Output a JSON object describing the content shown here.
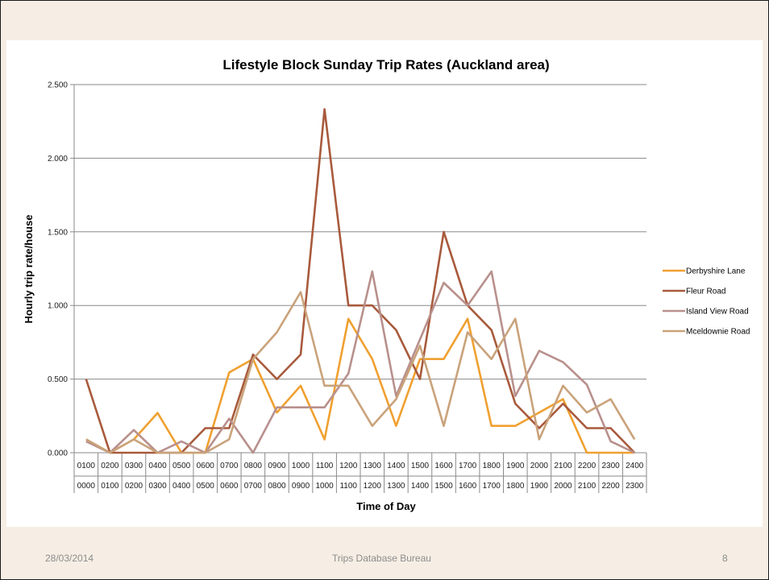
{
  "footer": {
    "date": "28/03/2014",
    "organisation": "Trips Database Bureau",
    "page_number": "8"
  },
  "chart_data": {
    "type": "line",
    "title": "Lifestyle Block Sunday Trip Rates (Auckland area)",
    "xlabel": "Time of Day",
    "ylabel": "Hourly trip rate/house",
    "ylim": [
      0,
      2.5
    ],
    "yticks": [
      "0.000",
      "0.500",
      "1.000",
      "1.500",
      "2.000",
      "2.500"
    ],
    "grid": true,
    "legend_position": "right",
    "categories_end": [
      "0100",
      "0200",
      "0300",
      "0400",
      "0500",
      "0600",
      "0700",
      "0800",
      "0900",
      "1000",
      "1100",
      "1200",
      "1300",
      "1400",
      "1500",
      "1600",
      "1700",
      "1800",
      "1900",
      "2000",
      "2100",
      "2200",
      "2300",
      "2400"
    ],
    "categories_start": [
      "0000",
      "0100",
      "0200",
      "0300",
      "0400",
      "0500",
      "0600",
      "0700",
      "0800",
      "0900",
      "1000",
      "1100",
      "1200",
      "1300",
      "1400",
      "1500",
      "1600",
      "1700",
      "1800",
      "1900",
      "2000",
      "2100",
      "2200",
      "2300"
    ],
    "series": [
      {
        "name": "Derbyshire Lane",
        "color": "#f0a030",
        "values": [
          0.09,
          0,
          0.09,
          0.27,
          0,
          0,
          0.545,
          0.636,
          0.273,
          0.455,
          0.09,
          0.909,
          0.636,
          0.182,
          0.636,
          0.636,
          0.909,
          0.182,
          0.182,
          0.273,
          0.364,
          0,
          0,
          0
        ]
      },
      {
        "name": "Fleur Road",
        "color": "#a85a3c",
        "values": [
          0.5,
          0,
          0,
          0,
          0,
          0.167,
          0.167,
          0.667,
          0.5,
          0.667,
          2.333,
          1.0,
          1.0,
          0.833,
          0.5,
          1.5,
          1.0,
          0.833,
          0.333,
          0.167,
          0.333,
          0.167,
          0.167,
          0
        ]
      },
      {
        "name": "Island View Road",
        "color": "#b8908c",
        "values": [
          0.077,
          0,
          0.154,
          0,
          0.077,
          0,
          0.231,
          0,
          0.308,
          0.308,
          0.308,
          0.538,
          1.231,
          0.385,
          0.769,
          1.154,
          1.0,
          1.231,
          0.385,
          0.692,
          0.615,
          0.462,
          0.077,
          0
        ]
      },
      {
        "name": "Mceldownie Road",
        "color": "#c9a27a",
        "values": [
          0.091,
          0,
          0.091,
          0,
          0,
          0,
          0.091,
          0.636,
          0.818,
          1.091,
          0.455,
          0.455,
          0.182,
          0.364,
          0.727,
          0.182,
          0.818,
          0.636,
          0.909,
          0.091,
          0.455,
          0.273,
          0.364,
          0.091
        ]
      }
    ]
  }
}
